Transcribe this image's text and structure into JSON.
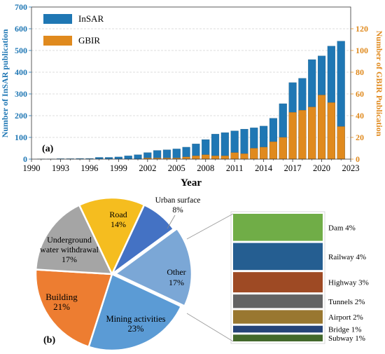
{
  "chart_data": [
    {
      "type": "bar",
      "panel_label": "(a)",
      "xlabel": "Year",
      "ylabel": "Number of InSAR publication",
      "ylabel_right": "Number of GBIR Publication",
      "xlim": [
        1990,
        2023
      ],
      "ylim": [
        0,
        700
      ],
      "ylim_right": [
        0,
        140
      ],
      "x_ticks": [
        1990,
        1993,
        1996,
        1999,
        2002,
        2005,
        2008,
        2011,
        2014,
        2017,
        2020,
        2023
      ],
      "y_ticks": [
        0,
        100,
        200,
        300,
        400,
        500,
        600,
        700
      ],
      "y_ticks_right": [
        0,
        20,
        40,
        60,
        80,
        100,
        120
      ],
      "legend_position": "top-left",
      "grid": "horizontal dashed",
      "x": [
        1991,
        1992,
        1993,
        1994,
        1995,
        1996,
        1997,
        1998,
        1999,
        2000,
        2001,
        2002,
        2003,
        2004,
        2005,
        2006,
        2007,
        2008,
        2009,
        2010,
        2011,
        2012,
        2013,
        2014,
        2015,
        2016,
        2017,
        2018,
        2019,
        2020,
        2021,
        2022
      ],
      "series": [
        {
          "name": "InSAR",
          "axis": "left",
          "color": "#1f77b4",
          "values": [
            1,
            1,
            2,
            2,
            3,
            3,
            8,
            8,
            10,
            15,
            20,
            30,
            40,
            43,
            47,
            55,
            70,
            90,
            115,
            122,
            130,
            138,
            144,
            152,
            188,
            255,
            352,
            372,
            458,
            475,
            520,
            543
          ]
        },
        {
          "name": "GBIR",
          "axis": "right",
          "color": "#e08a1e",
          "values": [
            0,
            0,
            0,
            0,
            0,
            0,
            0,
            0,
            0,
            0,
            0,
            1,
            1,
            1,
            1,
            2,
            3,
            4,
            3,
            3,
            6,
            5,
            10,
            11,
            16,
            20,
            43,
            45,
            48,
            59,
            52,
            30
          ]
        }
      ]
    },
    {
      "type": "pie",
      "panel_label": "(b)",
      "slices": [
        {
          "label": "Urban surface",
          "value": 8,
          "text": "8%",
          "color": "#4472c4"
        },
        {
          "label": "Other",
          "value": 17,
          "text": "17%",
          "color": "#7ba7d6"
        },
        {
          "label": "Mining activities",
          "value": 23,
          "text": "23%",
          "color": "#5b9bd5"
        },
        {
          "label": "Building",
          "value": 21,
          "text": "21%",
          "color": "#ed7d31"
        },
        {
          "label": "Underground water withdrawal",
          "value": 17,
          "text": "17%",
          "color": "#a5a5a5"
        },
        {
          "label": "Road",
          "value": 14,
          "text": "14%",
          "color": "#f5bd1f"
        }
      ],
      "breakdown_of": "Other",
      "breakdown": [
        {
          "label": "Dam 4%",
          "value": 4,
          "color": "#70ad47"
        },
        {
          "label": "Railway 4%",
          "value": 4,
          "color": "#255e91"
        },
        {
          "label": "Highway 3%",
          "value": 3,
          "color": "#9e4a24"
        },
        {
          "label": "Tunnels 2%",
          "value": 2,
          "color": "#636363"
        },
        {
          "label": "Airport 2%",
          "value": 2,
          "color": "#997730"
        },
        {
          "label": "Bridge 1%",
          "value": 1,
          "color": "#264478"
        },
        {
          "label": "Subway 1%",
          "value": 1,
          "color": "#43682b"
        }
      ]
    }
  ]
}
